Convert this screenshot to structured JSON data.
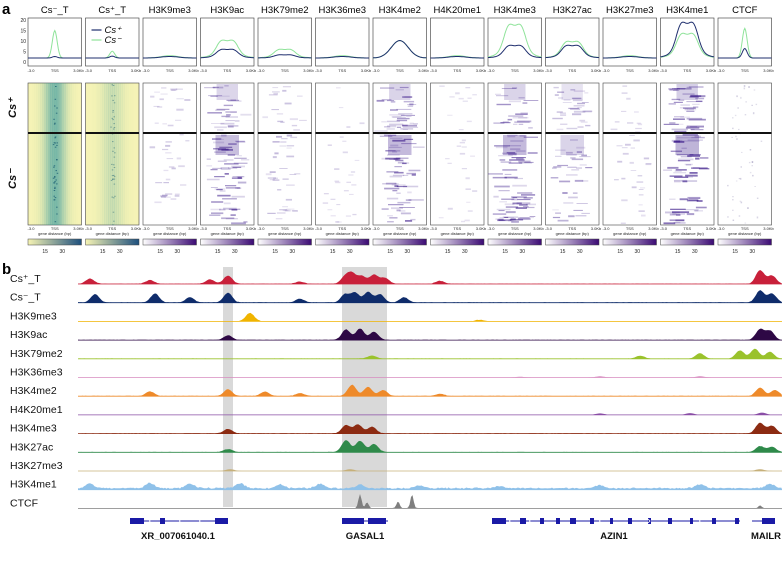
{
  "panel_a": {
    "letter": "a",
    "columns": [
      {
        "id": "cs_minus_t",
        "title": "Cs⁻_T",
        "italic_prefix": "Cs",
        "suffix": "⁻_T",
        "profile_color_a": "#1f2f6e",
        "profile_color_b": "#8fe39a",
        "heat_low": "#f6f4b4",
        "heat_high": "#1d6f7d",
        "scheme": "yg"
      },
      {
        "id": "cs_plus_t",
        "title": "Cs⁺_T",
        "italic_prefix": "Cs",
        "suffix": "⁺_T",
        "profile_color_a": "#1f2f6e",
        "profile_color_b": "#8fe39a",
        "heat_low": "#f6f4b4",
        "heat_high": "#1d6f7d",
        "scheme": "yg"
      },
      {
        "id": "h3k9me3",
        "title": "H3K9me3",
        "scheme": "pu"
      },
      {
        "id": "h3k9ac",
        "title": "H3K9ac",
        "scheme": "pu"
      },
      {
        "id": "h3k79me2",
        "title": "H3K79me2",
        "scheme": "pu"
      },
      {
        "id": "h3k36me3",
        "title": "H3K36me3",
        "scheme": "pu"
      },
      {
        "id": "h3k4me2",
        "title": "H3K4me2",
        "scheme": "pu"
      },
      {
        "id": "h4k20me1",
        "title": "H4K20me1",
        "scheme": "pu"
      },
      {
        "id": "h3k4me3",
        "title": "H3K4me3",
        "scheme": "pu"
      },
      {
        "id": "h3k27ac",
        "title": "H3K27ac",
        "scheme": "pu"
      },
      {
        "id": "h3k27me3",
        "title": "H3K27me3",
        "scheme": "pu"
      },
      {
        "id": "h3k4me1",
        "title": "H3K4me1",
        "scheme": "pu"
      },
      {
        "id": "ctcf",
        "title": "CTCF",
        "scheme": "dots"
      }
    ],
    "profile_y_ticks": [
      "20",
      "15",
      "10",
      "5",
      "0"
    ],
    "x_ticks": [
      "-3.0",
      "TSS",
      "3.0Kb"
    ],
    "x_axis_label": "gene distance (bp)",
    "colorbar_ticks": [
      "15",
      "30"
    ],
    "legend": {
      "entries": [
        {
          "label": "Cs⁺",
          "color": "#1f2f6e"
        },
        {
          "label": "Cs⁻",
          "color": "#8fe39a"
        }
      ]
    },
    "row_labels": [
      {
        "label": "Cs⁺"
      },
      {
        "label": "Cs⁻"
      }
    ]
  },
  "panel_b": {
    "letter": "b",
    "tracks": [
      {
        "label": "Cs⁺_T",
        "color": "#c8203a"
      },
      {
        "label": "Cs⁻_T",
        "color": "#0f2c6b"
      },
      {
        "label": "H3K9me3",
        "color": "#f0b400"
      },
      {
        "label": "H3K9ac",
        "color": "#2e0845"
      },
      {
        "label": "H3K79me2",
        "color": "#9ac22c"
      },
      {
        "label": "H3K36me3",
        "color": "#d78bbf"
      },
      {
        "label": "H3K4me2",
        "color": "#ee8a2a"
      },
      {
        "label": "H4K20me1",
        "color": "#8a4fa6"
      },
      {
        "label": "H3K4me3",
        "color": "#8c2b12"
      },
      {
        "label": "H3K27ac",
        "color": "#2f8a4a"
      },
      {
        "label": "H3K27me3",
        "color": "#c6b07a"
      },
      {
        "label": "H3K4me1",
        "color": "#8fc1e9"
      },
      {
        "label": "CTCF",
        "color": "#7f7f7f"
      }
    ],
    "genes": [
      {
        "label": "XR_007061040.1"
      },
      {
        "label": "GASAL1"
      },
      {
        "label": "AZIN1"
      },
      {
        "label": "MAILR"
      }
    ],
    "gene_color": "#1a1aa6",
    "highlight_color": "#d9d9d9"
  }
}
